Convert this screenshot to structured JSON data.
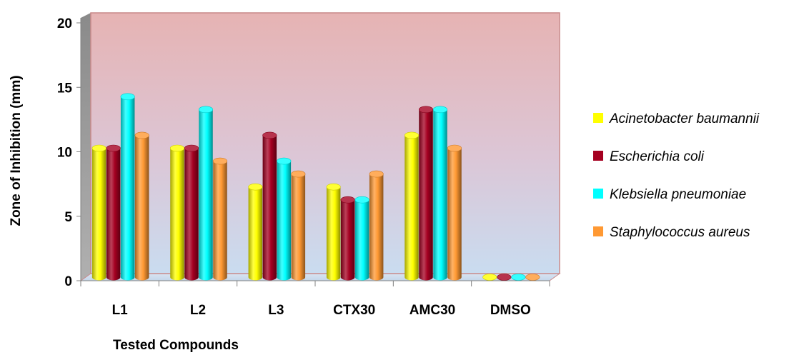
{
  "chart_data": {
    "type": "bar",
    "title": "",
    "xlabel": "Tested Compounds",
    "ylabel": "Zone of Inhibition (mm)",
    "ylim": [
      0,
      20
    ],
    "yticks": [
      0,
      5,
      10,
      15,
      20
    ],
    "categories": [
      "L1",
      "L2",
      "L3",
      "CTX30",
      "AMC30",
      "DMSO"
    ],
    "series": [
      {
        "name": "Acinetobacter baumannii",
        "color": "#ffff00",
        "values": [
          10,
          10,
          7,
          7,
          11,
          0
        ]
      },
      {
        "name": "Escherichia coli",
        "color": "#a50021",
        "values": [
          10,
          10,
          11,
          6,
          13,
          0
        ]
      },
      {
        "name": "Klebsiella pneumoniae",
        "color": "#00ffff",
        "values": [
          14,
          13,
          9,
          6,
          13,
          0
        ]
      },
      {
        "name": "Staphylococcus aureus",
        "color": "#ff9933",
        "values": [
          11,
          9,
          8,
          8,
          10,
          0
        ]
      }
    ],
    "legend_position": "right",
    "grid": false,
    "style": "3d-cylinder",
    "background": "gradient pink-to-blue"
  }
}
